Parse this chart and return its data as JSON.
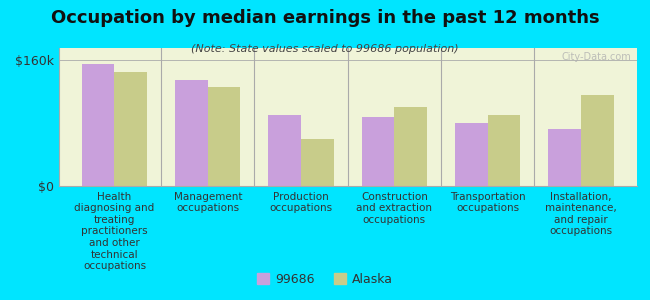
{
  "title": "Occupation by median earnings in the past 12 months",
  "subtitle": "(Note: State values scaled to 99686 population)",
  "categories": [
    "Health\ndiagnosing and\ntreating\npractitioners\nand other\ntechnical\noccupations",
    "Management\noccupations",
    "Production\noccupations",
    "Construction\nand extraction\noccupations",
    "Transportation\noccupations",
    "Installation,\nmaintenance,\nand repair\noccupations"
  ],
  "values_99686": [
    155000,
    135000,
    90000,
    88000,
    80000,
    72000
  ],
  "values_alaska": [
    145000,
    125000,
    60000,
    100000,
    90000,
    115000
  ],
  "color_99686": "#c9a0dc",
  "color_alaska": "#c8cc8a",
  "background_chart": "#f0f4d8",
  "background_fig": "#00e5ff",
  "ylabel_160": "$160k",
  "ylabel_0": "$0",
  "ylim": [
    0,
    175000
  ],
  "yticks": [
    0,
    160000
  ],
  "legend_labels": [
    "99686",
    "Alaska"
  ],
  "watermark": "City-Data.com",
  "title_fontsize": 13,
  "subtitle_fontsize": 8,
  "tick_fontsize": 7.5
}
